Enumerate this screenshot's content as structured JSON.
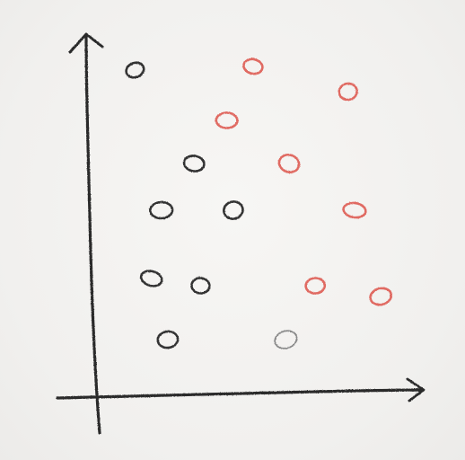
{
  "chart_data": {
    "type": "scatter",
    "title": "",
    "xlabel": "",
    "ylabel": "",
    "grid": false,
    "legend": "none",
    "xlim": [
      0,
      10
    ],
    "ylim": [
      0,
      10
    ],
    "colors": {
      "axis": "#2a2a2a",
      "black": "#333333",
      "red": "#e06b62",
      "grey": "#8a8a8a"
    },
    "points": [
      {
        "x": 1.3,
        "y": 9.0,
        "group": "black"
      },
      {
        "x": 3.1,
        "y": 6.4,
        "group": "black"
      },
      {
        "x": 2.1,
        "y": 5.1,
        "group": "black"
      },
      {
        "x": 4.3,
        "y": 5.1,
        "group": "black"
      },
      {
        "x": 1.8,
        "y": 3.2,
        "group": "black"
      },
      {
        "x": 3.3,
        "y": 3.0,
        "group": "black"
      },
      {
        "x": 2.3,
        "y": 1.5,
        "group": "black"
      },
      {
        "x": 5.9,
        "y": 1.5,
        "group": "grey"
      },
      {
        "x": 4.9,
        "y": 9.1,
        "group": "red"
      },
      {
        "x": 4.1,
        "y": 7.6,
        "group": "red"
      },
      {
        "x": 7.8,
        "y": 8.4,
        "group": "red"
      },
      {
        "x": 6.0,
        "y": 6.4,
        "group": "red"
      },
      {
        "x": 8.0,
        "y": 5.1,
        "group": "red"
      },
      {
        "x": 6.8,
        "y": 3.0,
        "group": "red"
      },
      {
        "x": 8.8,
        "y": 2.7,
        "group": "red"
      }
    ]
  }
}
